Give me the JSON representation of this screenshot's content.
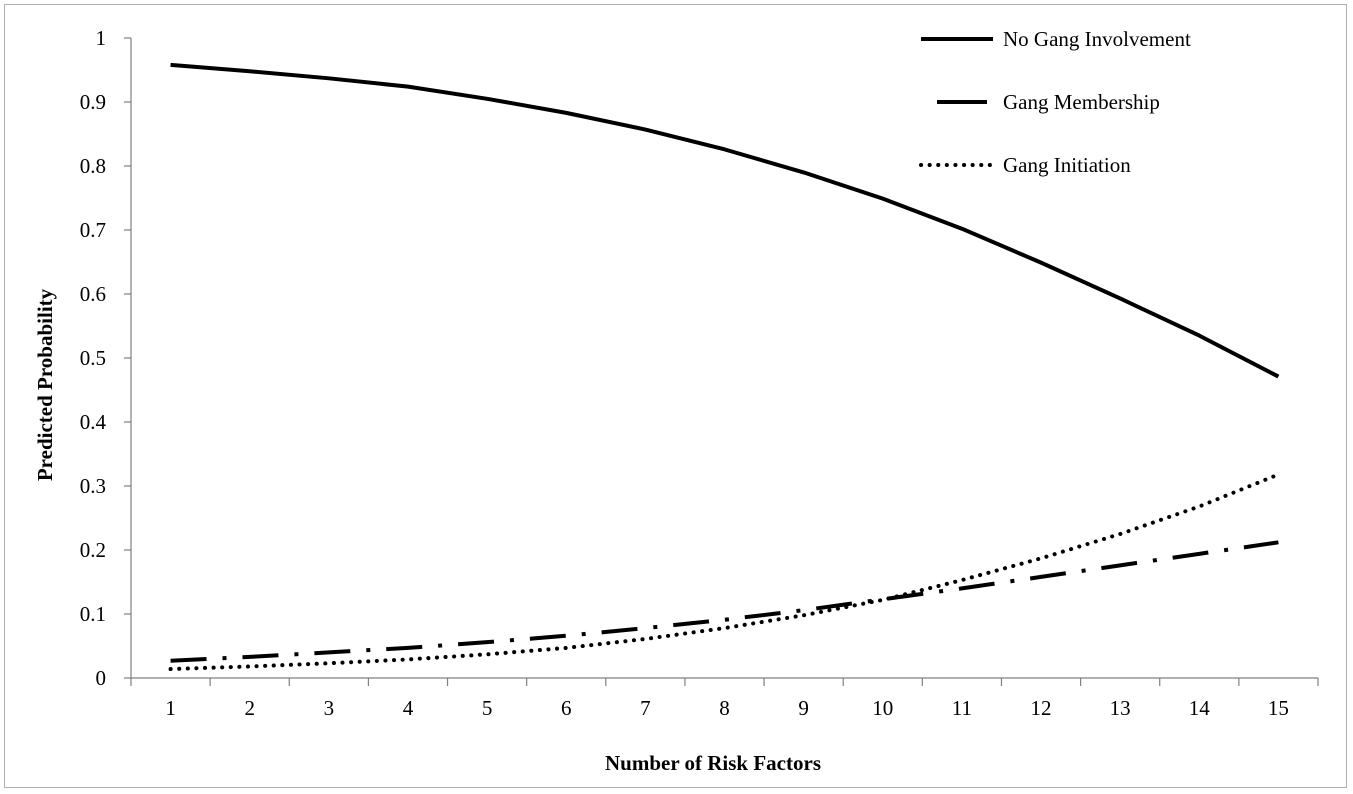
{
  "chart_data": {
    "type": "line",
    "title": "",
    "xlabel": "Number  of Risk Factors",
    "ylabel": "Predicted  Probability",
    "x": [
      1,
      2,
      3,
      4,
      5,
      6,
      7,
      8,
      9,
      10,
      11,
      12,
      13,
      14,
      15
    ],
    "xticks": [
      "1",
      "2",
      "3",
      "4",
      "5",
      "6",
      "7",
      "8",
      "9",
      "10",
      "11",
      "12",
      "13",
      "14",
      "15"
    ],
    "yticks": [
      "0",
      "0.1",
      "0.2",
      "0.3",
      "0.4",
      "0.5",
      "0.6",
      "0.7",
      "0.8",
      "0.9",
      "1"
    ],
    "ylim": [
      0,
      1
    ],
    "grid": false,
    "legend_position": "top-right",
    "series": [
      {
        "name": "No Gang Involvement",
        "style": "solid",
        "color": "#000000",
        "values": [
          0.958,
          0.948,
          0.937,
          0.924,
          0.905,
          0.883,
          0.857,
          0.826,
          0.79,
          0.749,
          0.702,
          0.649,
          0.593,
          0.535,
          0.471
        ]
      },
      {
        "name": "Gang Membership",
        "style": "long-dash-dot",
        "color": "#000000",
        "values": [
          0.027,
          0.033,
          0.04,
          0.047,
          0.056,
          0.066,
          0.078,
          0.091,
          0.106,
          0.123,
          0.14,
          0.158,
          0.176,
          0.194,
          0.212
        ]
      },
      {
        "name": "Gang Initiation",
        "style": "dotted",
        "color": "#000000",
        "values": [
          0.014,
          0.018,
          0.023,
          0.029,
          0.037,
          0.047,
          0.061,
          0.078,
          0.098,
          0.122,
          0.153,
          0.187,
          0.225,
          0.268,
          0.318
        ]
      }
    ]
  }
}
